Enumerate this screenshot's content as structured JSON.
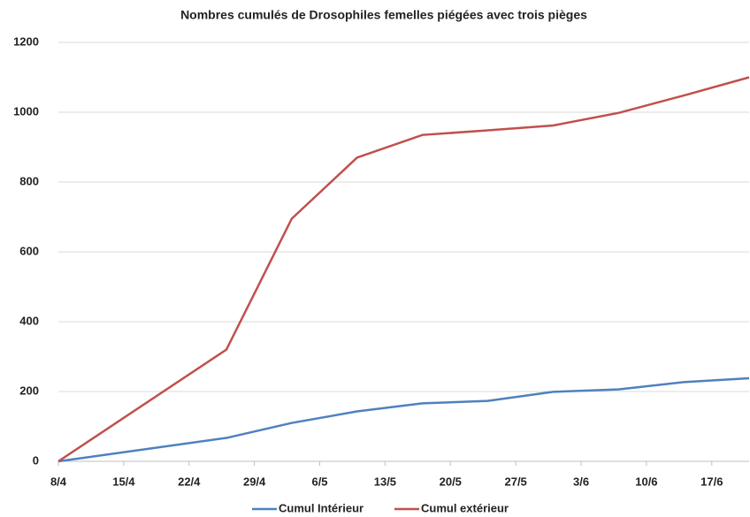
{
  "chart_data": {
    "type": "line",
    "title": "Nombres cumulés de Drosophiles femelles piégées avec trois pièges",
    "x": [
      0,
      18,
      25,
      32,
      39,
      46,
      53,
      60,
      67,
      74
    ],
    "xlim": [
      0,
      74
    ],
    "xticks": [
      {
        "value": 0,
        "label": "8/4"
      },
      {
        "value": 7,
        "label": "15/4"
      },
      {
        "value": 14,
        "label": "22/4"
      },
      {
        "value": 21,
        "label": "29/4"
      },
      {
        "value": 28,
        "label": "6/5"
      },
      {
        "value": 35,
        "label": "13/5"
      },
      {
        "value": 42,
        "label": "20/5"
      },
      {
        "value": 49,
        "label": "27/5"
      },
      {
        "value": 56,
        "label": "3/6"
      },
      {
        "value": 63,
        "label": "10/6"
      },
      {
        "value": 70,
        "label": "17/6"
      }
    ],
    "ylim": [
      0,
      1200
    ],
    "yticks": [
      0,
      200,
      400,
      600,
      800,
      1000,
      1200
    ],
    "grid": true,
    "legend": "bottom",
    "series": [
      {
        "name": "Cumul Intérieur",
        "color": "#4f81bd",
        "values": [
          0,
          67,
          110,
          143,
          166,
          173,
          199,
          206,
          227,
          238
        ]
      },
      {
        "name": "Cumul extérieur",
        "color": "#c0504d",
        "values": [
          0,
          320,
          695,
          870,
          935,
          948,
          962,
          998,
          1048,
          1100
        ]
      }
    ]
  }
}
